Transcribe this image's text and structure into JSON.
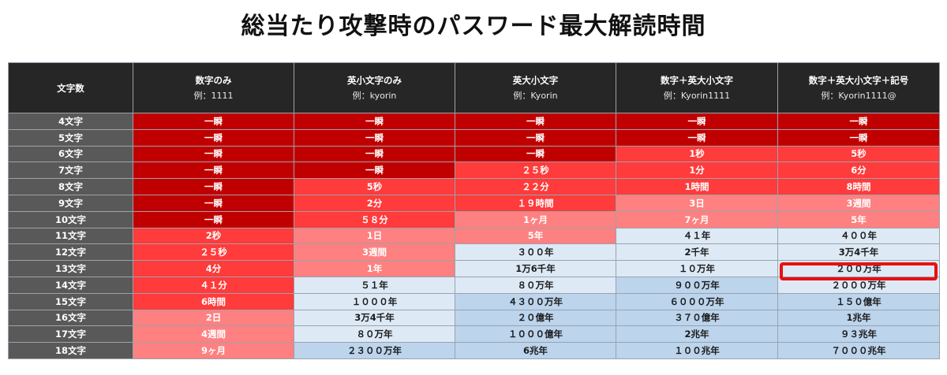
{
  "title": "総当たり攻撃時のパスワード最大解読時間",
  "header": {
    "corner": "文字数",
    "columns": [
      {
        "label": "数字のみ",
        "example": "例：1111"
      },
      {
        "label": "英小文字のみ",
        "example": "例：kyorin"
      },
      {
        "label": "英大小文字",
        "example": "例：Kyorin"
      },
      {
        "label": "数字＋英大小文字",
        "example": "例：Kyorin1111"
      },
      {
        "label": "数字＋英大小文字＋記号",
        "example": "例：Kyorin1111@"
      }
    ]
  },
  "rows": [
    {
      "length": "4文字",
      "cells": [
        "一瞬",
        "一瞬",
        "一瞬",
        "一瞬",
        "一瞬"
      ]
    },
    {
      "length": "5文字",
      "cells": [
        "一瞬",
        "一瞬",
        "一瞬",
        "一瞬",
        "一瞬"
      ]
    },
    {
      "length": "6文字",
      "cells": [
        "一瞬",
        "一瞬",
        "一瞬",
        "1秒",
        "5秒"
      ]
    },
    {
      "length": "7文字",
      "cells": [
        "一瞬",
        "一瞬",
        "２５秒",
        "1分",
        "6分"
      ]
    },
    {
      "length": "8文字",
      "cells": [
        "一瞬",
        "5秒",
        "２２分",
        "1時間",
        "8時間"
      ]
    },
    {
      "length": "9文字",
      "cells": [
        "一瞬",
        "2分",
        "１９時間",
        "3日",
        "3週間"
      ]
    },
    {
      "length": "10文字",
      "cells": [
        "一瞬",
        "５８分",
        "1ヶ月",
        "7ヶ月",
        "5年"
      ]
    },
    {
      "length": "11文字",
      "cells": [
        "2秒",
        "1日",
        "5年",
        "４１年",
        "４００年"
      ]
    },
    {
      "length": "12文字",
      "cells": [
        "２５秒",
        "3週間",
        "３００年",
        "2千年",
        "3万4千年"
      ]
    },
    {
      "length": "13文字",
      "cells": [
        "4分",
        "1年",
        "1万6千年",
        "１０万年",
        "２００万年"
      ]
    },
    {
      "length": "14文字",
      "cells": [
        "４１分",
        "５１年",
        "８０万年",
        "９００万年",
        "２０００万年"
      ]
    },
    {
      "length": "15文字",
      "cells": [
        "6時間",
        "１０００年",
        "４３００万年",
        "６０００万年",
        "１５０億年"
      ]
    },
    {
      "length": "16文字",
      "cells": [
        "2日",
        "3万4千年",
        "２０億年",
        "３７０億年",
        "1兆年"
      ]
    },
    {
      "length": "17文字",
      "cells": [
        "4週間",
        "８０万年",
        "１０００億年",
        "2兆年",
        "９３兆年"
      ]
    },
    {
      "length": "18文字",
      "cells": [
        "9ヶ月",
        "２３００万年",
        "6兆年",
        "１００兆年",
        "７０００兆年"
      ]
    }
  ],
  "shading": [
    [
      "dark",
      "dark",
      "dark",
      "dark",
      "dark"
    ],
    [
      "dark",
      "dark",
      "dark",
      "dark",
      "dark"
    ],
    [
      "dark",
      "dark",
      "dark",
      "mid",
      "mid"
    ],
    [
      "dark",
      "dark",
      "mid",
      "mid",
      "mid"
    ],
    [
      "dark",
      "mid",
      "mid",
      "mid",
      "mid"
    ],
    [
      "dark",
      "mid",
      "mid",
      "light",
      "light"
    ],
    [
      "dark",
      "mid",
      "light",
      "light",
      "light"
    ],
    [
      "mid",
      "light",
      "light",
      "pale",
      "pale"
    ],
    [
      "mid",
      "light",
      "pale",
      "pale",
      "pale"
    ],
    [
      "mid",
      "light",
      "pale",
      "pale",
      "pale"
    ],
    [
      "mid",
      "pale",
      "pale",
      "blue",
      "pale"
    ],
    [
      "mid",
      "pale",
      "blue",
      "blue",
      "blue"
    ],
    [
      "light",
      "pale",
      "blue",
      "blue",
      "blue"
    ],
    [
      "light",
      "pale",
      "blue",
      "blue",
      "blue"
    ],
    [
      "light",
      "blue",
      "blue",
      "blue",
      "blue"
    ]
  ],
  "highlight": {
    "row": 9,
    "column": 4,
    "color": "#e81010"
  },
  "colors": {
    "header_bg": "#262626",
    "row_header_bg": "#595959",
    "dark_red": "#c00000",
    "red": "#ff3b3b",
    "light_red": "#ff8080",
    "pale_blue": "#dde9f5",
    "blue": "#bcd4ec"
  }
}
